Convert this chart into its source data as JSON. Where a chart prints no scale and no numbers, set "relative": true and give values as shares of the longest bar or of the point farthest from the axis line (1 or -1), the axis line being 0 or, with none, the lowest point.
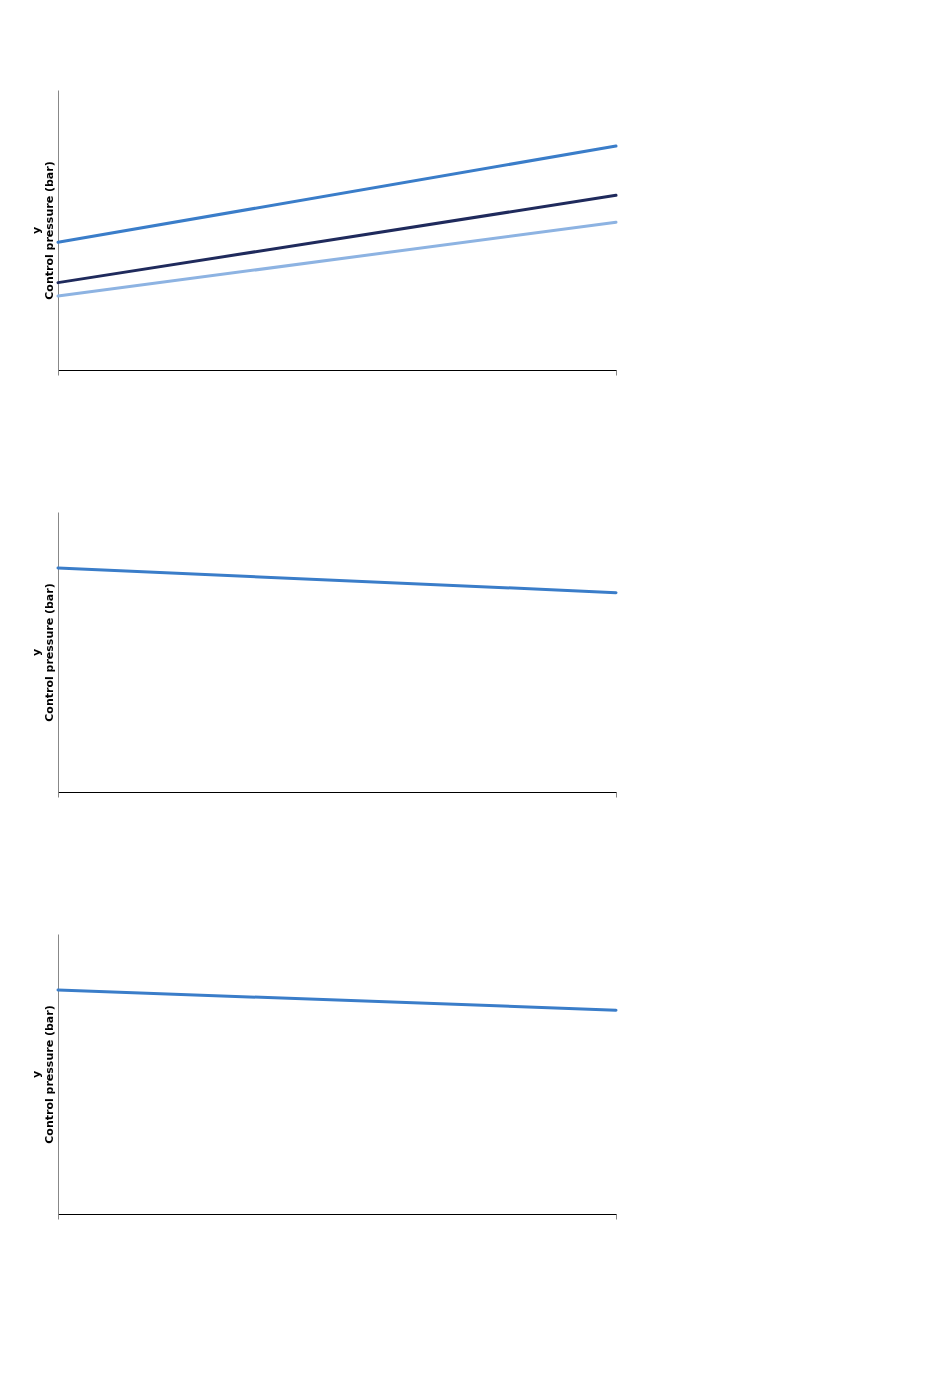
{
  "chart_data": [
    {
      "type": "line",
      "ylabel": "y\nControl pressure (bar)",
      "relative": true,
      "categories": [
        null,
        null
      ],
      "legend": false,
      "series": [
        {
          "color": "#3a7dc9",
          "values": [
            0.57,
            1
          ]
        },
        {
          "color": "#1f2a5c",
          "values": [
            0.39,
            0.78
          ]
        },
        {
          "color": "#8db3e2",
          "values": [
            0.33,
            0.66
          ]
        }
      ]
    },
    {
      "type": "line",
      "ylabel": "y\nControl pressure (bar)",
      "relative": true,
      "categories": [
        null,
        null
      ],
      "legend": false,
      "series": [
        {
          "color": "#3a7dc9",
          "values": [
            1,
            0.89
          ]
        }
      ]
    },
    {
      "type": "line",
      "ylabel": "y\nControl pressure (bar)",
      "relative": true,
      "categories": [
        null,
        null
      ],
      "legend": false,
      "series": [
        {
          "color": "#3a7dc9",
          "values": [
            1,
            0.91
          ]
        }
      ]
    }
  ]
}
